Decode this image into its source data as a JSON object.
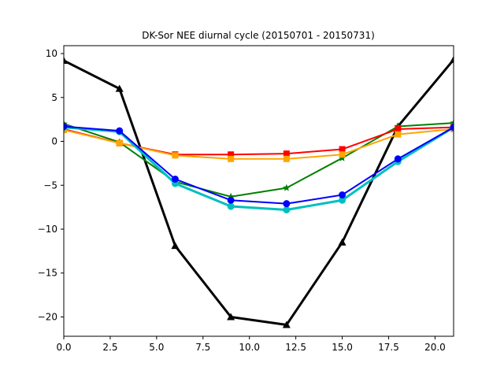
{
  "chart_data": {
    "type": "line",
    "title": "DK-Sor NEE diurnal cycle (20150701 - 20150731)",
    "xlabel": "",
    "ylabel": "",
    "xlim": [
      0,
      21
    ],
    "ylim": [
      -22.2,
      10.9
    ],
    "grid": false,
    "legend": "none",
    "x_ticks": [
      0.0,
      2.5,
      5.0,
      7.5,
      10.0,
      12.5,
      15.0,
      17.5,
      20.0
    ],
    "x_tick_labels": [
      "0.0",
      "2.5",
      "5.0",
      "7.5",
      "10.0",
      "12.5",
      "15.0",
      "17.5",
      "20.0"
    ],
    "y_ticks": [
      10,
      5,
      0,
      -5,
      -10,
      -15,
      -20
    ],
    "y_tick_labels": [
      "10",
      "5",
      "0",
      "−5",
      "−10",
      "−15",
      "−20"
    ],
    "x": [
      0,
      3,
      6,
      9,
      12,
      15,
      18,
      21
    ],
    "series": [
      {
        "color": "#000000",
        "marker": "triangle",
        "width": 3,
        "values": [
          9.2,
          6.0,
          -11.9,
          -20.0,
          -20.9,
          -11.5,
          1.7,
          9.3
        ]
      },
      {
        "color": "#008000",
        "marker": "star",
        "width": 2,
        "values": [
          2.0,
          -0.1,
          -4.6,
          -6.3,
          -5.3,
          -1.9,
          1.7,
          2.1
        ]
      },
      {
        "color": "#ff0000",
        "marker": "square",
        "width": 2,
        "values": [
          1.4,
          -0.2,
          -1.5,
          -1.5,
          -1.4,
          -0.9,
          1.4,
          1.6
        ]
      },
      {
        "color": "#ffa500",
        "marker": "square",
        "width": 2,
        "values": [
          1.3,
          -0.2,
          -1.6,
          -2.0,
          -2.0,
          -1.5,
          0.8,
          1.4
        ]
      },
      {
        "color": "#00bfbf",
        "marker": "circle",
        "width": 3,
        "values": [
          1.6,
          1.1,
          -4.8,
          -7.4,
          -7.8,
          -6.7,
          -2.3,
          1.6
        ]
      },
      {
        "color": "#0000ff",
        "marker": "circle",
        "width": 2,
        "values": [
          1.7,
          1.2,
          -4.3,
          -6.7,
          -7.1,
          -6.1,
          -2.0,
          1.6
        ]
      }
    ]
  }
}
